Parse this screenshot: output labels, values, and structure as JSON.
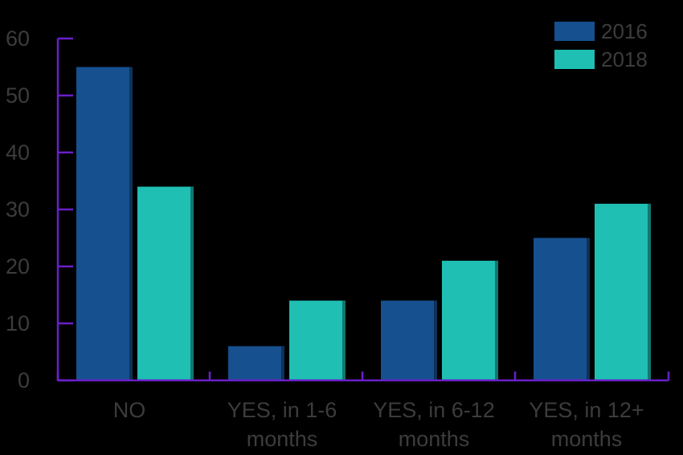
{
  "chart_data": {
    "type": "bar",
    "title": "",
    "xlabel": "",
    "ylabel": "",
    "categories": [
      [
        "NO"
      ],
      [
        "YES, in 1-6",
        "months"
      ],
      [
        "YES, in 6-12",
        "months"
      ],
      [
        "YES, in 12+",
        "months"
      ]
    ],
    "series": [
      {
        "name": "2016",
        "color": "#16508f",
        "values": [
          55,
          6,
          14,
          25
        ]
      },
      {
        "name": "2018",
        "color": "#1fbfb4",
        "values": [
          34,
          14,
          21,
          31
        ]
      }
    ],
    "ylim": [
      0,
      60
    ],
    "yticks": [
      0,
      10,
      20,
      30,
      40,
      50,
      60
    ],
    "grid": false,
    "legend": "top-right",
    "axis_color": "#6a1fc9",
    "background": "#000000"
  }
}
